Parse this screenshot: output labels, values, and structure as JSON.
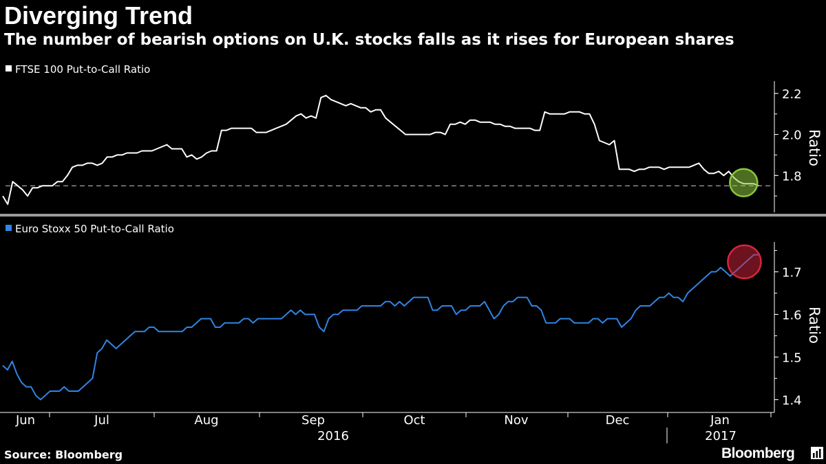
{
  "header": {
    "title": "Diverging Trend",
    "subtitle": "The number of bearish options on U.K. stocks falls as it rises for European shares"
  },
  "footer": {
    "source": "Source: Bloomberg",
    "brand": "Bloomberg"
  },
  "colors": {
    "background": "#000000",
    "ftse_line": "#ffffff",
    "euro_line": "#2f86e6",
    "highlight_green": "#8cc63f",
    "highlight_red": "#d7263d"
  },
  "chart_data": [
    {
      "type": "line",
      "title": "",
      "xlabel": "",
      "ylabel": "Ratio",
      "ylim": [
        1.62,
        2.26
      ],
      "yticks": [
        "2.2",
        "2.0",
        "1.8"
      ],
      "ytick_values": [
        2.2,
        2.0,
        1.8
      ],
      "reference_line": 1.75,
      "grid": false,
      "legend_position": "top-left",
      "series": [
        {
          "name": "FTSE 100 Put-to-Call Ratio",
          "values": [
            1.7,
            1.66,
            1.77,
            1.75,
            1.73,
            1.7,
            1.74,
            1.74,
            1.75,
            1.75,
            1.75,
            1.77,
            1.77,
            1.8,
            1.84,
            1.85,
            1.85,
            1.86,
            1.86,
            1.85,
            1.86,
            1.89,
            1.89,
            1.9,
            1.9,
            1.91,
            1.91,
            1.91,
            1.92,
            1.92,
            1.92,
            1.93,
            1.94,
            1.95,
            1.93,
            1.93,
            1.93,
            1.89,
            1.9,
            1.88,
            1.89,
            1.91,
            1.92,
            1.92,
            2.02,
            2.02,
            2.03,
            2.03,
            2.03,
            2.03,
            2.03,
            2.01,
            2.01,
            2.01,
            2.02,
            2.03,
            2.04,
            2.05,
            2.07,
            2.09,
            2.1,
            2.08,
            2.09,
            2.08,
            2.18,
            2.19,
            2.17,
            2.16,
            2.15,
            2.14,
            2.15,
            2.14,
            2.13,
            2.13,
            2.11,
            2.12,
            2.12,
            2.08,
            2.06,
            2.04,
            2.02,
            2.0,
            2.0,
            2.0,
            2.0,
            2.0,
            2.0,
            2.01,
            2.01,
            2.0,
            2.05,
            2.05,
            2.06,
            2.05,
            2.07,
            2.07,
            2.06,
            2.06,
            2.06,
            2.05,
            2.05,
            2.04,
            2.04,
            2.03,
            2.03,
            2.03,
            2.03,
            2.02,
            2.02,
            2.11,
            2.1,
            2.1,
            2.1,
            2.1,
            2.11,
            2.11,
            2.11,
            2.1,
            2.1,
            2.05,
            1.97,
            1.96,
            1.95,
            1.97,
            1.83,
            1.83,
            1.83,
            1.82,
            1.83,
            1.83,
            1.84,
            1.84,
            1.84,
            1.83,
            1.84,
            1.84,
            1.84,
            1.84,
            1.84,
            1.85,
            1.86,
            1.83,
            1.81,
            1.81,
            1.82,
            1.8,
            1.82,
            1.79,
            1.77,
            1.76,
            1.76,
            1.76,
            1.75
          ]
        }
      ]
    },
    {
      "type": "line",
      "title": "",
      "xlabel": "",
      "ylabel": "Ratio",
      "ylim": [
        1.37,
        1.77
      ],
      "yticks": [
        "1.7",
        "1.6",
        "1.5",
        "1.4"
      ],
      "ytick_values": [
        1.7,
        1.6,
        1.5,
        1.4
      ],
      "grid": false,
      "legend_position": "top-left",
      "x_month_labels": [
        "Jun",
        "Jul",
        "Aug",
        "Sep",
        "Oct",
        "Nov",
        "Dec",
        "Jan"
      ],
      "x_year_labels": [
        "2016",
        "2017"
      ],
      "series": [
        {
          "name": "Euro Stoxx 50 Put-to-Call Ratio",
          "values": [
            1.48,
            1.47,
            1.49,
            1.46,
            1.44,
            1.43,
            1.43,
            1.41,
            1.4,
            1.41,
            1.42,
            1.42,
            1.42,
            1.43,
            1.42,
            1.42,
            1.42,
            1.43,
            1.44,
            1.45,
            1.51,
            1.52,
            1.54,
            1.53,
            1.52,
            1.53,
            1.54,
            1.55,
            1.56,
            1.56,
            1.56,
            1.57,
            1.57,
            1.56,
            1.56,
            1.56,
            1.56,
            1.56,
            1.56,
            1.57,
            1.57,
            1.58,
            1.59,
            1.59,
            1.59,
            1.57,
            1.57,
            1.58,
            1.58,
            1.58,
            1.58,
            1.59,
            1.59,
            1.58,
            1.59,
            1.59,
            1.59,
            1.59,
            1.59,
            1.59,
            1.6,
            1.61,
            1.6,
            1.61,
            1.6,
            1.6,
            1.6,
            1.57,
            1.56,
            1.59,
            1.6,
            1.6,
            1.61,
            1.61,
            1.61,
            1.61,
            1.62,
            1.62,
            1.62,
            1.62,
            1.62,
            1.63,
            1.63,
            1.62,
            1.63,
            1.62,
            1.63,
            1.64,
            1.64,
            1.64,
            1.64,
            1.61,
            1.61,
            1.62,
            1.62,
            1.62,
            1.6,
            1.61,
            1.61,
            1.62,
            1.62,
            1.62,
            1.63,
            1.61,
            1.59,
            1.6,
            1.62,
            1.63,
            1.63,
            1.64,
            1.64,
            1.64,
            1.62,
            1.62,
            1.61,
            1.58,
            1.58,
            1.58,
            1.59,
            1.59,
            1.59,
            1.58,
            1.58,
            1.58,
            1.58,
            1.59,
            1.59,
            1.58,
            1.59,
            1.59,
            1.59,
            1.57,
            1.58,
            1.59,
            1.61,
            1.62,
            1.62,
            1.62,
            1.63,
            1.64,
            1.64,
            1.65,
            1.64,
            1.64,
            1.63,
            1.65,
            1.66,
            1.67,
            1.68,
            1.69,
            1.7,
            1.7,
            1.71,
            1.7,
            1.69,
            1.7,
            1.71,
            1.72,
            1.73,
            1.74,
            1.74
          ]
        }
      ]
    }
  ]
}
